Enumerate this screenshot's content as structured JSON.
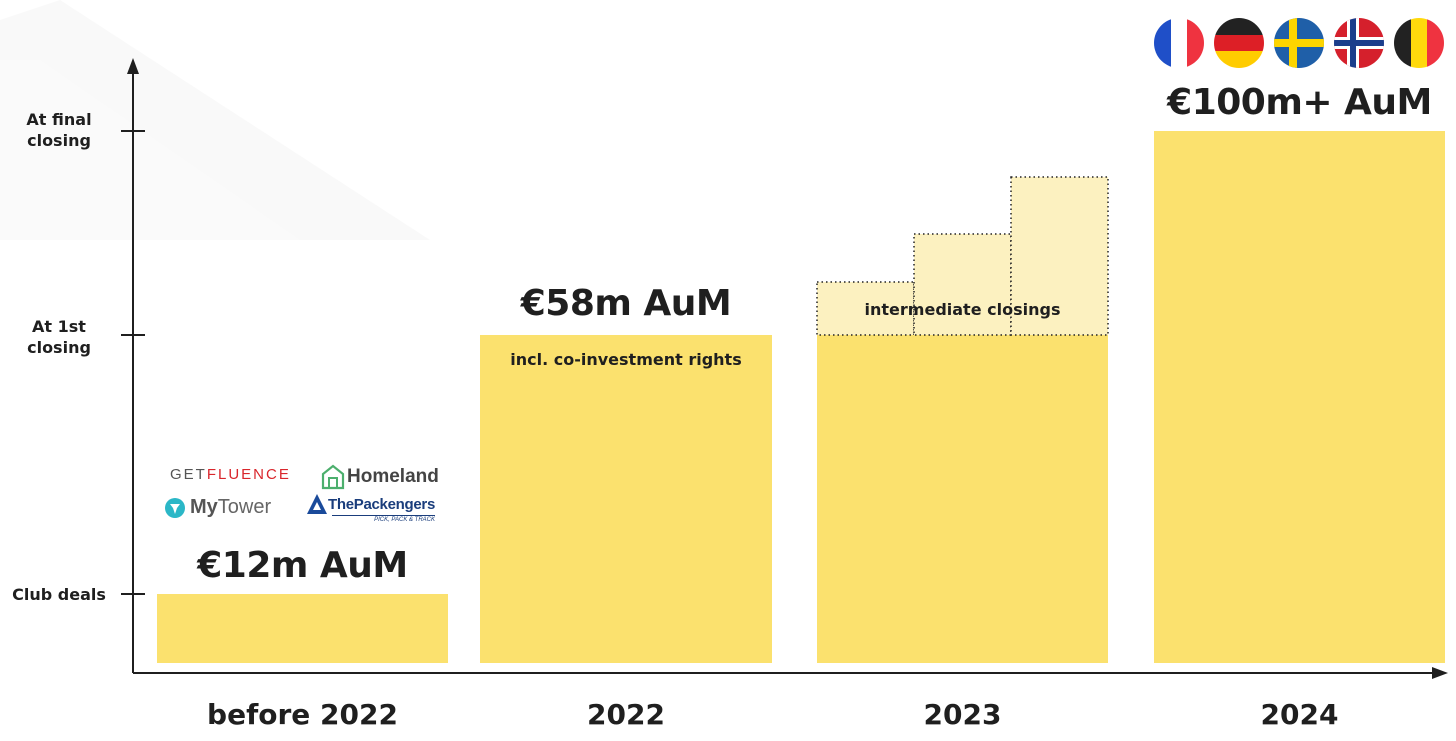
{
  "chart_data": {
    "type": "bar",
    "categories": [
      "before 2022",
      "2022",
      "2023",
      "2024"
    ],
    "y_tick_labels": [
      "Club deals",
      "At 1st closing",
      "At final closing"
    ],
    "values": [
      12,
      58,
      58,
      100
    ],
    "value_labels": [
      "€12m AuM",
      "€58m AuM",
      "",
      "€100m+ AuM"
    ],
    "intermediate_closings": {
      "category": "2023",
      "label": "intermediate closings",
      "steps": 3
    },
    "annotations": {
      "co_investment": "incl. co-investment rights"
    },
    "colors": {
      "bar": "#fbe16e",
      "intermediate": "#fcf1c0",
      "axis": "#1f1f1f"
    }
  },
  "axis": {
    "y_ticks": [
      {
        "lines": [
          "Club deals"
        ]
      },
      {
        "lines": [
          "At 1st",
          "closing"
        ]
      },
      {
        "lines": [
          "At final",
          "closing"
        ]
      }
    ]
  },
  "logos": {
    "getfluence": {
      "pre": "GET",
      "main": "FLUENCE"
    },
    "homeland": "Homeland",
    "mytower": {
      "bold": "My",
      "light": "Tower"
    },
    "thepackengers": {
      "name": "ThePackengers",
      "tagline": "PICK, PACK & TRACK"
    }
  },
  "flags": [
    {
      "icon": "france-flag-icon",
      "colors": [
        "#1f4fc8",
        "#ffffff",
        "#ef3340"
      ]
    },
    {
      "icon": "germany-flag-icon",
      "colors": [
        "#222222",
        "#dd1f26",
        "#ffcc00"
      ]
    },
    {
      "icon": "sweden-flag-icon",
      "colors": [
        "#1f5fa8",
        "#fdd500"
      ]
    },
    {
      "icon": "norway-flag-icon",
      "colors": [
        "#d5202c",
        "#ffffff",
        "#1b3e8c"
      ]
    },
    {
      "icon": "belgium-flag-icon",
      "colors": [
        "#222222",
        "#ffd90c",
        "#ef3340"
      ]
    }
  ]
}
